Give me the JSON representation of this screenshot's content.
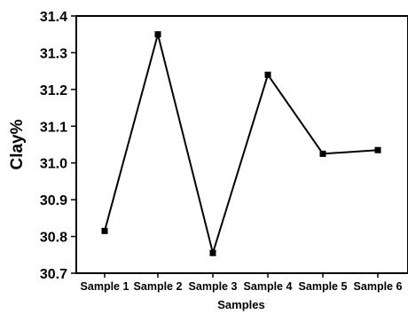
{
  "chart_data": {
    "type": "line",
    "title": "",
    "xlabel": "Samples",
    "ylabel": "Clay%",
    "categories": [
      "Sample 1",
      "Sample 2",
      "Sample 3",
      "Sample 4",
      "Sample 5",
      "Sample 6"
    ],
    "series": [
      {
        "values": [
          30.815,
          31.35,
          30.755,
          31.24,
          31.025,
          31.035
        ]
      }
    ],
    "ylim": [
      30.7,
      31.4
    ],
    "yticks": [
      "30.7",
      "30.8",
      "30.9",
      "31.0",
      "31.1",
      "31.2",
      "31.3",
      "31.4"
    ],
    "grid": false,
    "line_color": "#000000",
    "marker": "square"
  }
}
